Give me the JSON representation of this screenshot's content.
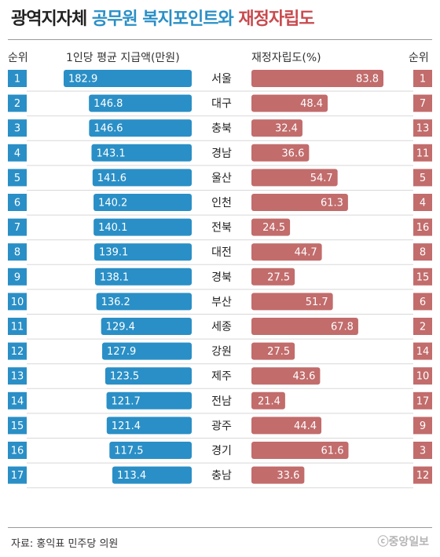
{
  "title": {
    "part1": "광역지자체",
    "part2": "공무원 복지포인트와",
    "part3": "재정자립도"
  },
  "headers": {
    "left_rank": "순위",
    "left_bar": "1인당 평균 지급액(만원)",
    "right_bar": "재정자립도(%)",
    "right_rank": "순위"
  },
  "source": "자료: 홍익표 민주당 의원",
  "logo": "ⓒ중앙일보",
  "colors": {
    "blue": "#2a8fc6",
    "red": "#c26c6c",
    "title_blue": "#2a8fc6",
    "title_red": "#c94a4e"
  },
  "chart_data": {
    "type": "bar",
    "categories": [
      "서울",
      "대구",
      "충북",
      "경남",
      "울산",
      "인천",
      "전북",
      "대전",
      "경북",
      "부산",
      "세종",
      "강원",
      "제주",
      "전남",
      "광주",
      "경기",
      "충남"
    ],
    "series": [
      {
        "name": "1인당 평균 지급액(만원)",
        "values": [
          182.9,
          146.8,
          146.6,
          143.1,
          141.6,
          140.2,
          140.1,
          139.1,
          138.1,
          136.2,
          129.4,
          127.9,
          123.5,
          121.7,
          121.4,
          117.5,
          113.4
        ],
        "ranks": [
          1,
          2,
          3,
          4,
          5,
          6,
          7,
          8,
          9,
          10,
          11,
          12,
          13,
          14,
          15,
          16,
          17
        ]
      },
      {
        "name": "재정자립도(%)",
        "values": [
          83.8,
          48.4,
          32.4,
          36.6,
          54.7,
          61.3,
          24.5,
          44.7,
          27.5,
          51.7,
          67.8,
          27.5,
          43.6,
          21.4,
          44.4,
          61.6,
          33.6
        ],
        "ranks": [
          1,
          7,
          13,
          11,
          5,
          4,
          16,
          8,
          15,
          6,
          2,
          14,
          10,
          17,
          9,
          3,
          12
        ]
      }
    ]
  }
}
